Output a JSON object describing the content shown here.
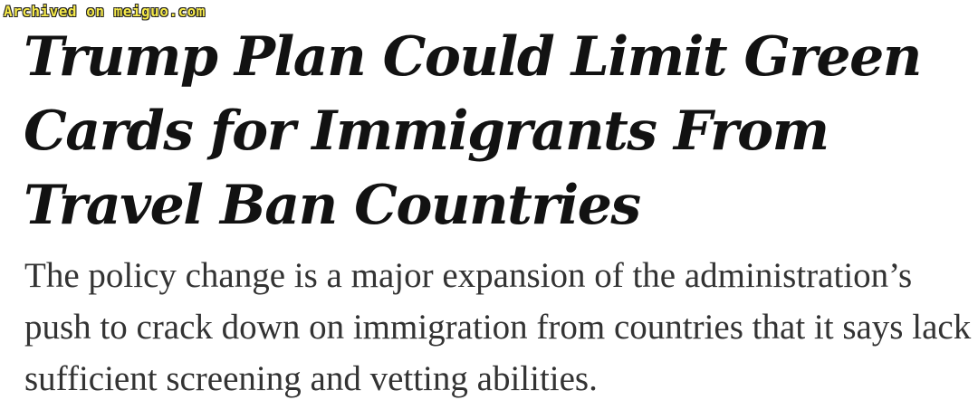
{
  "watermark": "Archived on meiguo.com",
  "article": {
    "headline": "Trump Plan Could Limit Green Cards for Immigrants From Travel Ban Countries",
    "summary": "The policy change is a major expansion of the administration’s push to crack down on immigration from countries that it says lack sufficient screening and vetting abilities."
  },
  "colors": {
    "headline": "#121212",
    "summary": "#333333",
    "watermark": "#f5e94a"
  }
}
